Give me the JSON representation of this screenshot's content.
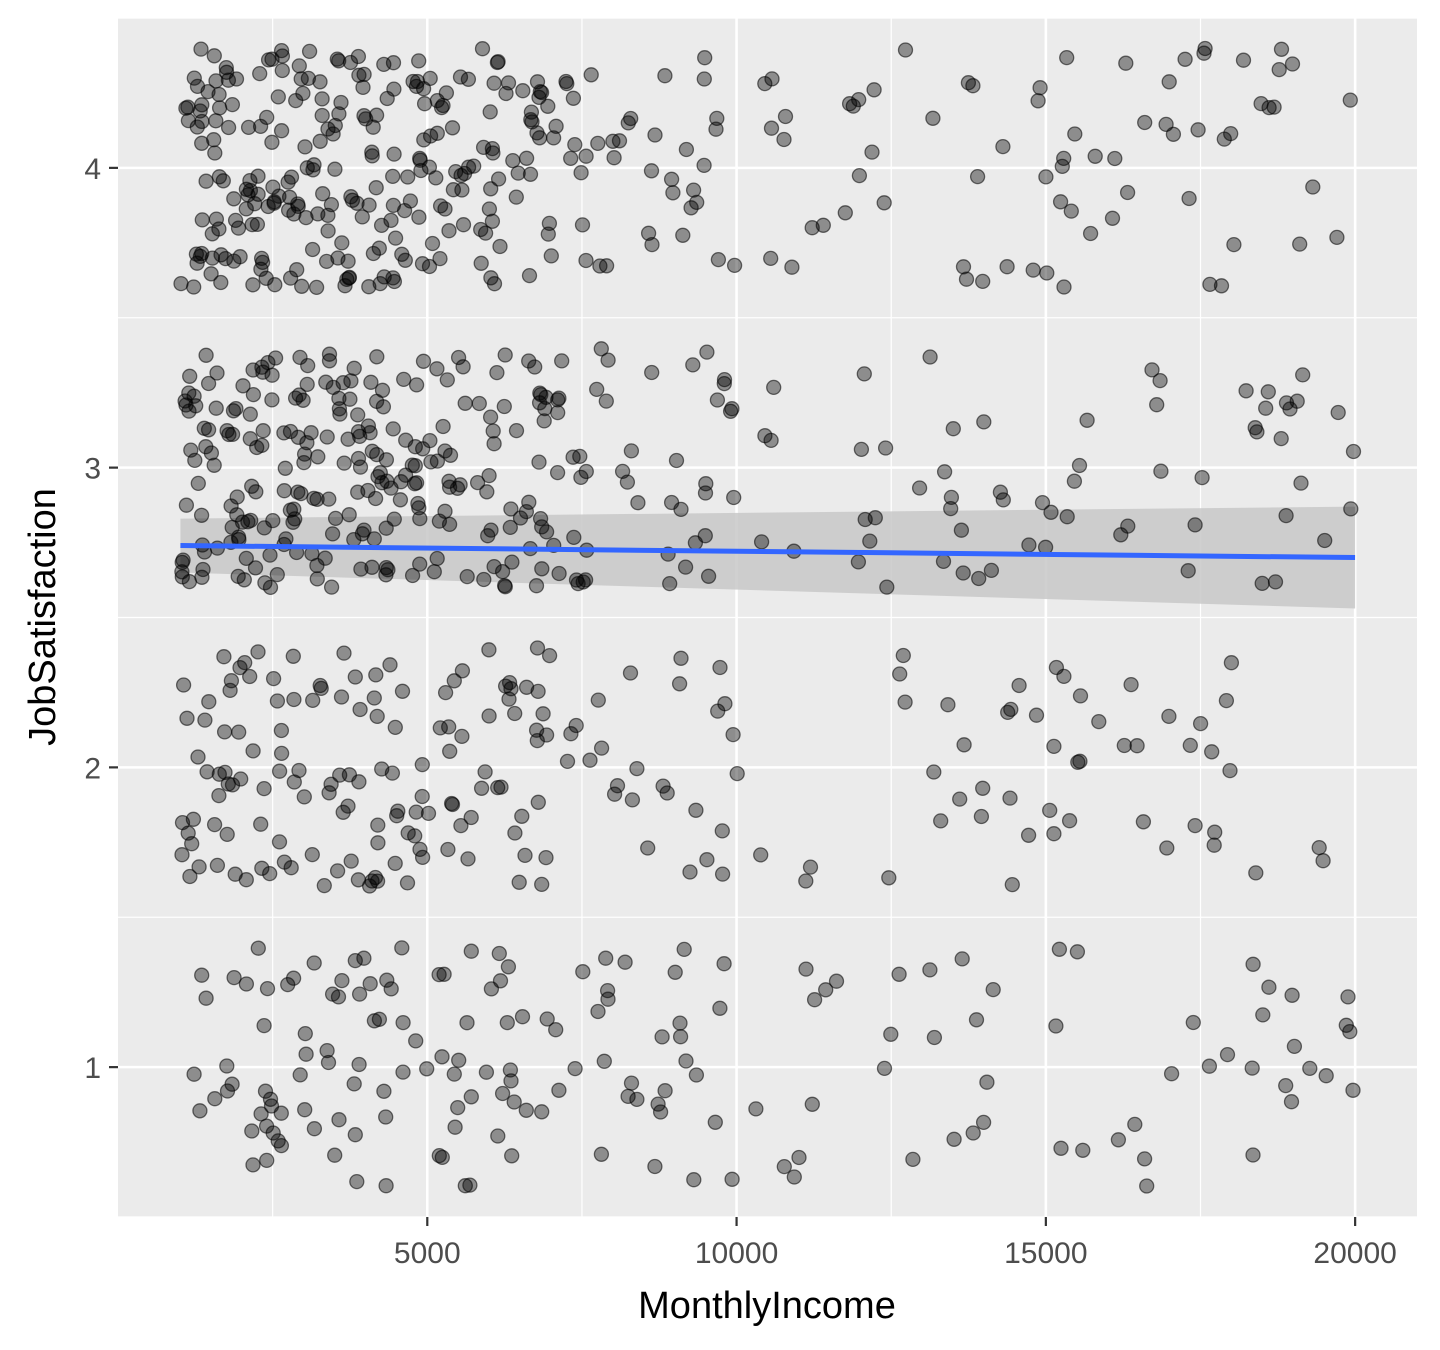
{
  "chart_data": {
    "type": "scatter",
    "xlabel": "MonthlyIncome",
    "ylabel": "JobSatisfaction",
    "xlim": [
      0,
      21000
    ],
    "ylim": [
      0.5,
      4.5
    ],
    "x_ticks": [
      5000,
      10000,
      15000,
      20000
    ],
    "x_tick_labels": [
      "5000",
      "10000",
      "15000",
      "20000"
    ],
    "y_ticks": [
      1,
      2,
      3,
      4
    ],
    "y_tick_labels": [
      "1",
      "2",
      "3",
      "4"
    ],
    "grid": true,
    "legend": "none",
    "point_color": "#000000",
    "point_alpha": 0.4,
    "jitter_height": 0.4,
    "trend_line": {
      "method": "lm",
      "color": "#3366ff",
      "x_start": 1009,
      "y_start": 2.74,
      "x_end": 19999,
      "y_end": 2.7,
      "ci_low_start": 2.65,
      "ci_high_start": 2.83,
      "ci_low_end": 2.53,
      "ci_high_end": 2.87,
      "ci_color": "#c8c8c8"
    },
    "groups": [
      {
        "y": 1,
        "counts": [
          {
            "x_max": 3000,
            "n": 28
          },
          {
            "x_max": 5000,
            "n": 32
          },
          {
            "x_max": 7000,
            "n": 30
          },
          {
            "x_max": 10000,
            "n": 30
          },
          {
            "x_max": 15000,
            "n": 22
          },
          {
            "x_max": 20000,
            "n": 28
          }
        ]
      },
      {
        "y": 2,
        "counts": [
          {
            "x_max": 3000,
            "n": 50
          },
          {
            "x_max": 5000,
            "n": 45
          },
          {
            "x_max": 7000,
            "n": 40
          },
          {
            "x_max": 10000,
            "n": 25
          },
          {
            "x_max": 15000,
            "n": 22
          },
          {
            "x_max": 20000,
            "n": 28
          }
        ]
      },
      {
        "y": 3,
        "counts": [
          {
            "x_max": 3000,
            "n": 90
          },
          {
            "x_max": 5000,
            "n": 85
          },
          {
            "x_max": 7000,
            "n": 60
          },
          {
            "x_max": 10000,
            "n": 45
          },
          {
            "x_max": 15000,
            "n": 30
          },
          {
            "x_max": 20000,
            "n": 32
          }
        ]
      },
      {
        "y": 4,
        "counts": [
          {
            "x_max": 3000,
            "n": 95
          },
          {
            "x_max": 5000,
            "n": 85
          },
          {
            "x_max": 7000,
            "n": 65
          },
          {
            "x_max": 10000,
            "n": 40
          },
          {
            "x_max": 15000,
            "n": 30
          },
          {
            "x_max": 20000,
            "n": 40
          }
        ]
      }
    ]
  }
}
